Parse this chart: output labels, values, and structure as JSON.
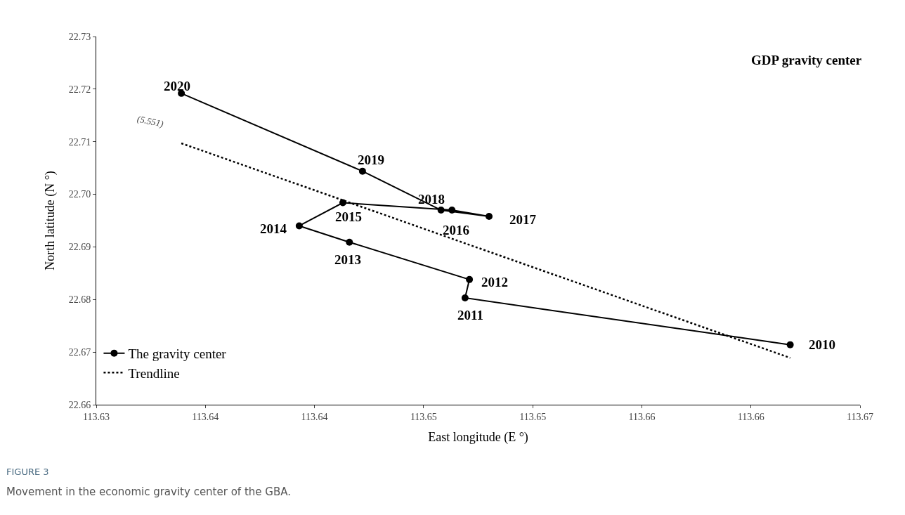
{
  "chart_data": {
    "type": "line",
    "title": "GDP gravity center",
    "xlabel": "East longitude (E °)",
    "ylabel": "North latitude (N °)",
    "series": [
      {
        "name": "The gravity center",
        "color": "#000000",
        "marker": "circle",
        "line_style": "solid",
        "x": [
          113.6618,
          113.6469,
          113.6471,
          113.6416,
          113.6393,
          113.6413,
          113.6463,
          113.648,
          113.6458,
          113.6422,
          113.6339
        ],
        "values": [
          22.6714,
          22.6803,
          22.6838,
          22.6909,
          22.694,
          22.6984,
          22.697,
          22.6958,
          22.697,
          22.7044,
          22.7192
        ]
      },
      {
        "name": "Trendline",
        "color": "#000000",
        "marker": "none",
        "line_style": "dotted",
        "x": [
          113.6339,
          113.6618
        ],
        "values": [
          22.7097,
          22.6689
        ]
      }
    ],
    "xlim": [
      113.63,
      113.665
    ],
    "ylim": [
      22.66,
      22.73
    ],
    "xticks": [
      113.63,
      {
        "value": 113.635,
        "label": "113.64"
      },
      {
        "value": 113.64,
        "label": "113.64"
      },
      {
        "value": 113.645,
        "label": "113.65"
      },
      {
        "value": 113.65,
        "label": "113.65"
      },
      {
        "value": 113.655,
        "label": "113.66"
      },
      {
        "value": 113.66,
        "label": "113.66"
      },
      {
        "value": 113.665,
        "label": "113.67"
      }
    ],
    "yticks": [
      22.66,
      22.67,
      22.68,
      22.69,
      {
        "value": 22.7,
        "label": "22.70"
      },
      22.71,
      22.72,
      22.73
    ],
    "legend": "bottom left",
    "annotations": [
      {
        "text": "2010",
        "x": 113.6618,
        "y": 22.6714
      },
      {
        "text": "2011",
        "x": 113.6469,
        "y": 22.6803
      },
      {
        "text": "2012",
        "x": 113.6471,
        "y": 22.6838
      },
      {
        "text": "2013",
        "x": 113.6416,
        "y": 22.6909
      },
      {
        "text": "2014",
        "x": 113.6393,
        "y": 22.694
      },
      {
        "text": "2015",
        "x": 113.6413,
        "y": 22.6984
      },
      {
        "text": "2016",
        "x": 113.6463,
        "y": 22.697
      },
      {
        "text": "2017",
        "x": 113.648,
        "y": 22.6958
      },
      {
        "text": "2018",
        "x": 113.6458,
        "y": 22.697
      },
      {
        "text": "2019",
        "x": 113.6422,
        "y": 22.7044
      },
      {
        "text": "2020",
        "x": 113.6339,
        "y": 22.7192
      },
      "(5.551)",
      "FIGURE 3",
      "Movement in the economic gravity center of the GBA."
    ]
  }
}
